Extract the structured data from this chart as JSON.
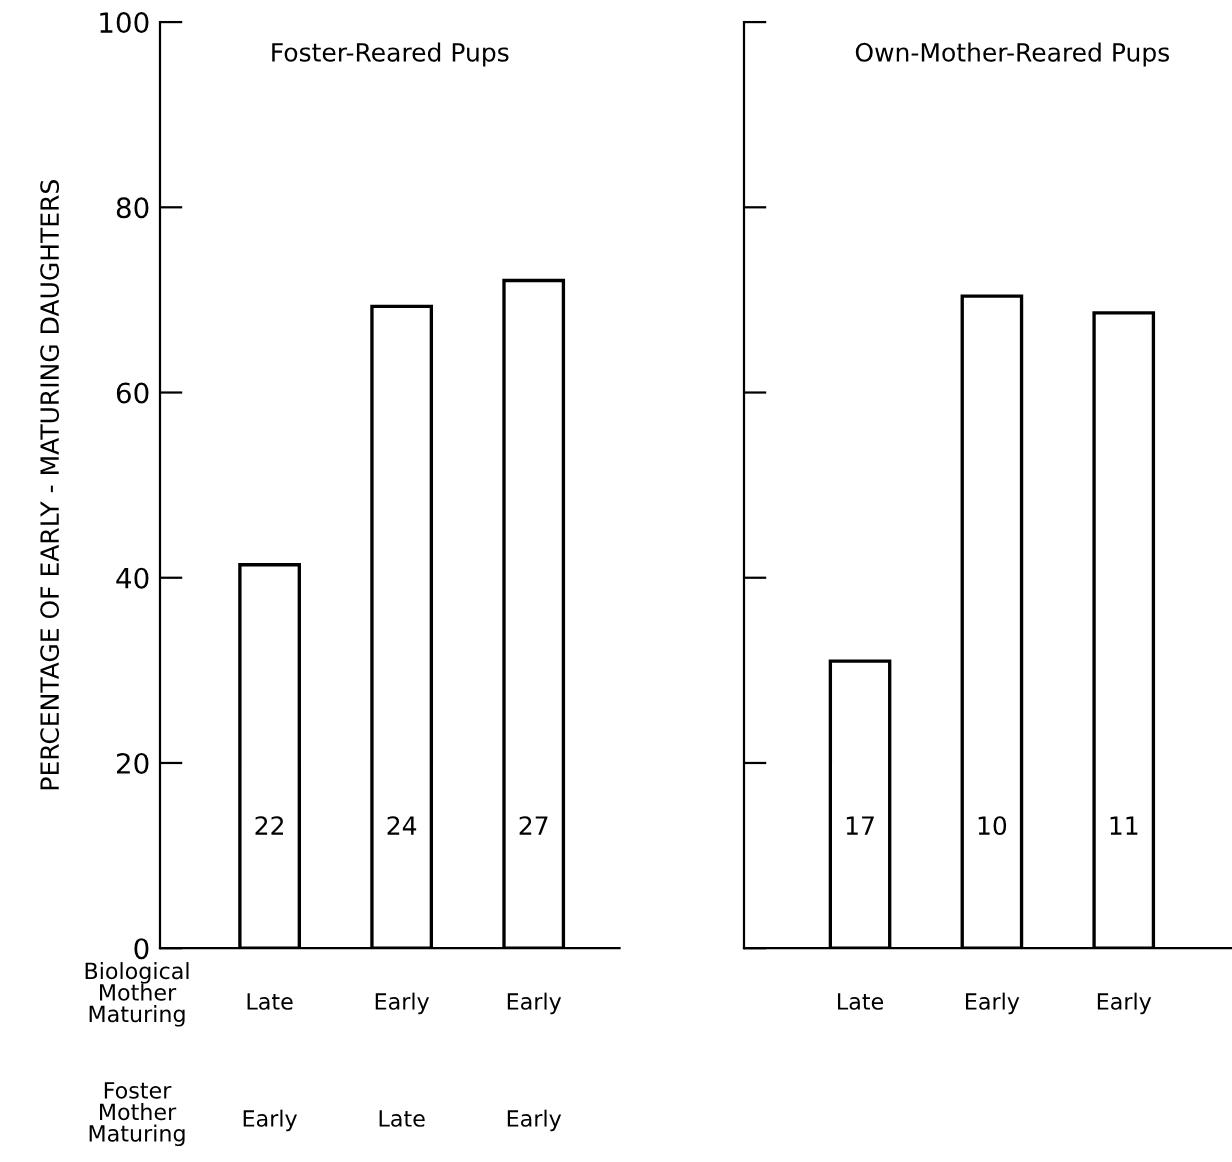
{
  "chart_data": [
    {
      "type": "bar",
      "title": "Foster-Reared Pups",
      "ylabel": "PERCENTAGE OF EARLY - MATURING DAUGHTERS",
      "categories": [
        "Late",
        "Early",
        "Early"
      ],
      "values": [
        41.4,
        69.3,
        72.1
      ],
      "color": "#ffffff",
      "ylim": [
        0,
        100
      ],
      "yticks": [
        0,
        20,
        40,
        60,
        80,
        100
      ],
      "grid": false,
      "annotations": [
        "Biological\nMother\nMaturing",
        "Foster\nMother\nMaturing",
        "Early",
        "Late",
        "Early",
        "22",
        "24",
        "27"
      ]
    },
    {
      "type": "bar",
      "title": "Own-Mother-Reared Pups",
      "categories": [
        "Late",
        "Early",
        "Early"
      ],
      "values": [
        31.0,
        70.4,
        68.6
      ],
      "color": "#ffffff",
      "ylim": [
        0,
        100
      ],
      "yticks": [
        0,
        20,
        40,
        60,
        80,
        100
      ],
      "tick_labels": "x",
      "grid": false,
      "annotations": [
        "17",
        "10",
        "11"
      ]
    }
  ]
}
